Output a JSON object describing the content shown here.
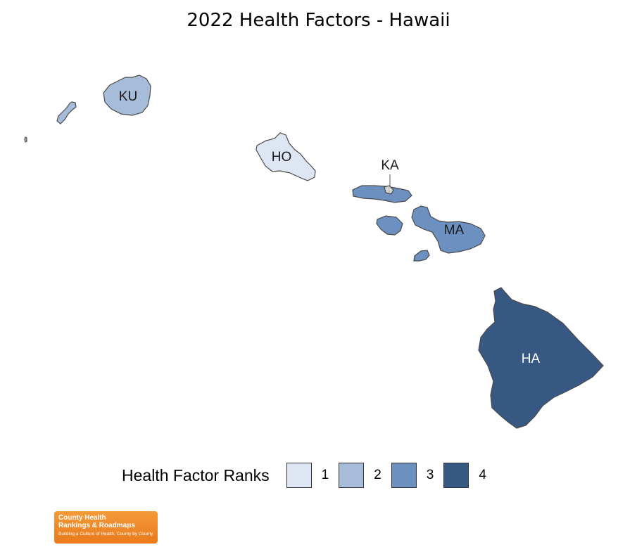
{
  "title": "2022 Health Factors - Hawaii",
  "legend": {
    "title": "Health Factor Ranks",
    "items": [
      {
        "label": "1",
        "color": "#dde6f2"
      },
      {
        "label": "2",
        "color": "#a6bcd9"
      },
      {
        "label": "3",
        "color": "#6c90c0"
      },
      {
        "label": "4",
        "color": "#365883"
      }
    ]
  },
  "counties": [
    {
      "abbr": "KU",
      "rank": 2
    },
    {
      "abbr": "HO",
      "rank": 1
    },
    {
      "abbr": "KA",
      "rank": 1
    },
    {
      "abbr": "MA",
      "rank": 3
    },
    {
      "abbr": "HA",
      "rank": 4
    }
  ],
  "logo": {
    "line1": "County Health",
    "line2": "Rankings & Roadmaps",
    "tagline": "Building a Culture of Health, County by County"
  }
}
